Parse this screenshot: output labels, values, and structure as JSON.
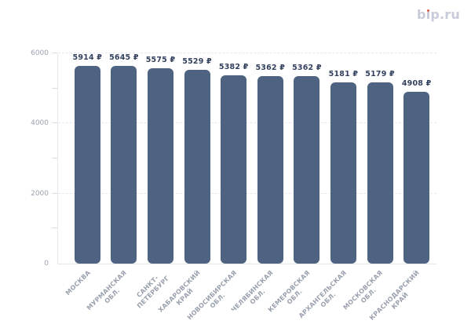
{
  "logo": {
    "text": "bip.ru",
    "prefix": "b",
    "i_stem": "ı",
    "suffix": "p.ru",
    "text_color": "#c8cbd9",
    "dot_color": "#e2584a"
  },
  "chart_data": {
    "type": "bar",
    "title": "",
    "xlabel": "",
    "ylabel": "",
    "categories": [
      "МОСКВА",
      "МУРМАНСКАЯ ОБЛ.",
      "САНКТ-ПЕТЕРБУРГ",
      "ХАБАРОВСКИЙ КРАЙ",
      "НОВОСИБИРСКАЯ ОБЛ.",
      "ЧЕЛЯБИНСКАЯ ОБЛ.",
      "КЕМЕРОВСКАЯ ОБЛ.",
      "АРХАНГЕЛЬСКАЯ ОБЛ.",
      "МОСКОВСКАЯ ОБЛ.",
      "КРАСНОДАРСКИЙ КРАЙ"
    ],
    "category_labels_multiline": [
      "МОСКВА",
      "МУРМАНСКАЯ\nОБЛ.",
      "САНКТ-\nПЕТЕРБУРГ",
      "ХАБАРОВСКИЙ\nКРАЙ",
      "НОВОСИБИРСКАЯ\nОБЛ.",
      "ЧЕЛЯБИНСКАЯ\nОБЛ.",
      "КЕМЕРОВСКАЯ\nОБЛ.",
      "АРХАНГЕЛЬСКАЯ\nОБЛ.",
      "МОСКОВСКАЯ\nОБЛ.",
      "КРАСНОДАРСКИЙ\nКРАЙ"
    ],
    "values": [
      5914,
      5645,
      5575,
      5529,
      5382,
      5362,
      5362,
      5181,
      5179,
      4908
    ],
    "value_labels": [
      "5914 ₽",
      "5645 ₽",
      "5575 ₽",
      "5529 ₽",
      "5382 ₽",
      "5362 ₽",
      "5362 ₽",
      "5181 ₽",
      "5179 ₽",
      "4908 ₽"
    ],
    "currency_symbol": "₽",
    "ylim": [
      0,
      6000
    ],
    "yticks_major": [
      0,
      2000,
      4000,
      6000
    ],
    "yticks_minor": [
      1000,
      3000,
      5000
    ],
    "grid": "horizontal dashed lines at major ticks above zero",
    "legend": "none",
    "colors": {
      "bar": "#4d6381",
      "value_label": "#33415e",
      "axis_label": "#9aa2b0",
      "grid_line": "#e4e7ed",
      "axis_line": "#e4e7ed"
    }
  }
}
